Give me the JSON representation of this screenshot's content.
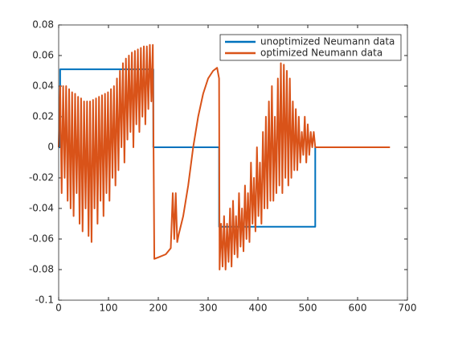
{
  "chart_data": {
    "type": "line",
    "xlim": [
      0,
      700
    ],
    "xticks": [
      0,
      100,
      200,
      300,
      400,
      500,
      600,
      700
    ],
    "ylim": [
      -0.1,
      0.08
    ],
    "yticks": [
      -0.1,
      -0.08,
      -0.06,
      -0.04,
      -0.02,
      0,
      0.02,
      0.04,
      0.06,
      0.08
    ],
    "legend": "northeast",
    "series": [
      {
        "name": "unoptimized Neumann data",
        "color": "#0072bd",
        "x": [
          0,
          3,
          3,
          190,
          190,
          322,
          322,
          515,
          515
        ],
        "values": [
          0,
          0,
          0.051,
          0.051,
          0,
          0,
          -0.052,
          -0.052,
          0
        ]
      },
      {
        "name": "optimized Neumann data",
        "color": "#d95319",
        "x": [
          0,
          3,
          6,
          9,
          12,
          15,
          18,
          21,
          24,
          27,
          30,
          33,
          36,
          39,
          42,
          45,
          48,
          51,
          54,
          57,
          60,
          63,
          66,
          69,
          72,
          75,
          78,
          81,
          84,
          87,
          90,
          93,
          96,
          99,
          102,
          105,
          108,
          111,
          114,
          117,
          120,
          123,
          126,
          129,
          132,
          135,
          138,
          141,
          144,
          147,
          150,
          153,
          156,
          159,
          162,
          165,
          168,
          171,
          174,
          177,
          180,
          183,
          186,
          189,
          192,
          200,
          215,
          225,
          229,
          232,
          235,
          238,
          241,
          250,
          260,
          270,
          280,
          290,
          300,
          310,
          318,
          322,
          323,
          326,
          329,
          332,
          335,
          338,
          341,
          344,
          347,
          350,
          353,
          356,
          359,
          362,
          365,
          368,
          371,
          374,
          377,
          380,
          383,
          386,
          389,
          392,
          395,
          398,
          401,
          404,
          407,
          410,
          413,
          416,
          419,
          422,
          425,
          428,
          431,
          434,
          437,
          440,
          443,
          446,
          449,
          452,
          455,
          458,
          461,
          464,
          467,
          470,
          473,
          476,
          479,
          482,
          485,
          488,
          491,
          494,
          497,
          500,
          503,
          506,
          509,
          512,
          515,
          665
        ],
        "values": [
          0,
          0.04,
          -0.03,
          0.04,
          -0.02,
          0.04,
          -0.035,
          0.038,
          -0.04,
          0.036,
          -0.045,
          0.035,
          -0.03,
          0.033,
          -0.05,
          0.032,
          -0.055,
          0.03,
          -0.04,
          0.03,
          -0.058,
          0.03,
          -0.062,
          0.031,
          -0.04,
          0.032,
          -0.05,
          0.033,
          -0.035,
          0.034,
          -0.045,
          0.035,
          -0.03,
          0.036,
          -0.035,
          0.038,
          -0.02,
          0.04,
          -0.025,
          0.045,
          -0.015,
          0.05,
          0,
          0.055,
          -0.01,
          0.058,
          0.005,
          0.06,
          0.01,
          0.062,
          0,
          0.063,
          0.015,
          0.064,
          0.01,
          0.065,
          0.02,
          0.066,
          0.015,
          0.066,
          0.025,
          0.067,
          0.03,
          0.067,
          -0.073,
          -0.072,
          -0.07,
          -0.066,
          -0.03,
          -0.06,
          -0.03,
          -0.062,
          -0.057,
          -0.045,
          -0.025,
          0,
          0.02,
          0.035,
          0.045,
          0.05,
          0.052,
          0.045,
          -0.08,
          -0.05,
          -0.078,
          -0.045,
          -0.08,
          -0.05,
          -0.075,
          -0.04,
          -0.078,
          -0.035,
          -0.07,
          -0.045,
          -0.072,
          -0.03,
          -0.065,
          -0.04,
          -0.068,
          -0.025,
          -0.06,
          -0.03,
          -0.062,
          -0.01,
          -0.05,
          -0.02,
          -0.055,
          0,
          -0.045,
          -0.01,
          -0.05,
          0.01,
          -0.04,
          0.02,
          -0.04,
          0.03,
          -0.035,
          0.04,
          -0.035,
          0.02,
          -0.03,
          0.045,
          -0.025,
          0.055,
          -0.03,
          0.054,
          -0.02,
          0.05,
          -0.025,
          0.045,
          -0.02,
          0.03,
          -0.015,
          0.025,
          -0.015,
          0.02,
          -0.01,
          0.01,
          -0.005,
          0.02,
          -0.01,
          0.015,
          -0.005,
          0.01,
          0,
          0.01,
          0,
          0
        ]
      }
    ]
  }
}
